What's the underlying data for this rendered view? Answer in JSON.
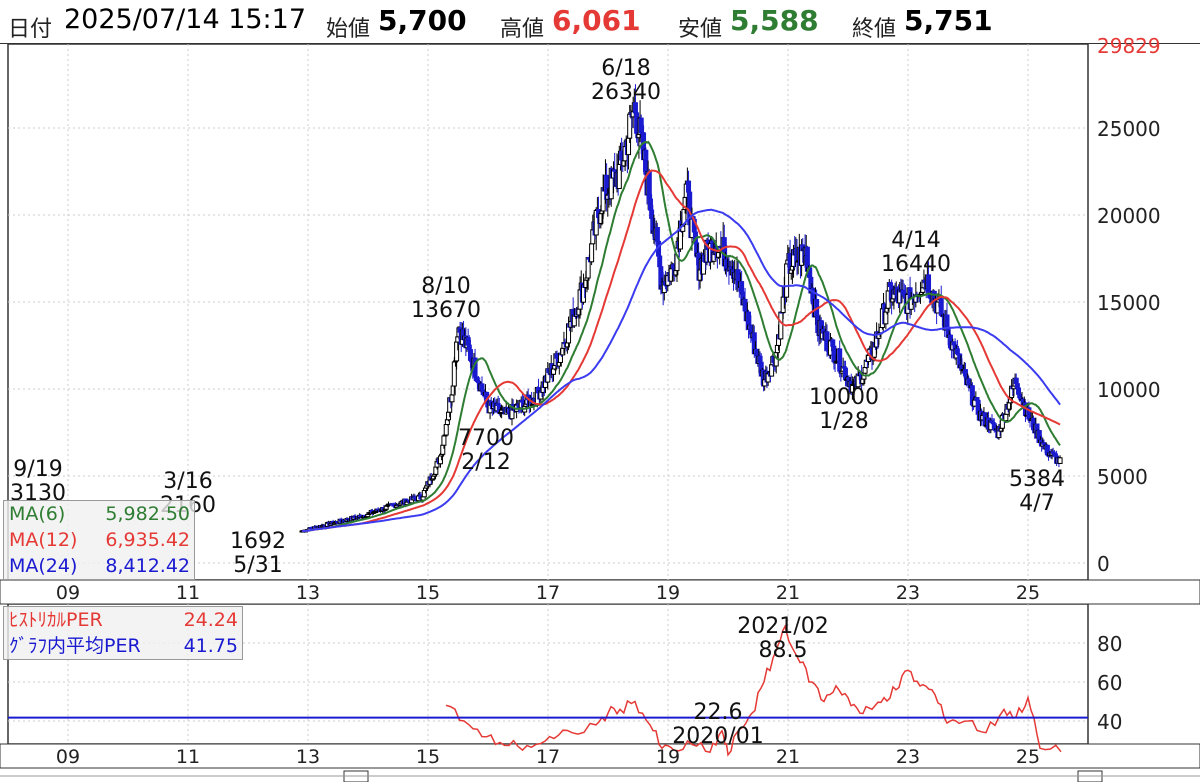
{
  "header": {
    "date_label": "日付",
    "datetime": "2025/07/14 15:17",
    "open_label": "始値",
    "open": "5,700",
    "high_label": "高値",
    "high": "6,061",
    "low_label": "安値",
    "low": "5,588",
    "close_label": "終値",
    "close": "5,751"
  },
  "colors": {
    "up": "#000000",
    "down": "#1a1ad0",
    "ma6": "#2e7d32",
    "ma12": "#e53935",
    "ma24": "#3b3bf0",
    "high_value": "#e53935",
    "low_value": "#2e7d32",
    "per": "#e53935",
    "per_avg": "#1a1ad0"
  },
  "legend_main": [
    {
      "name": "MA(6)",
      "value": "5,982.50",
      "color": "#2e7d32"
    },
    {
      "name": "MA(12)",
      "value": "6,935.42",
      "color": "#e53935"
    },
    {
      "name": "MA(24)",
      "value": "8,412.42",
      "color": "#1a1ad0"
    }
  ],
  "legend_per": [
    {
      "name": "ﾋｽﾄﾘｶﾙPER",
      "value": "24.24",
      "color": "#e53935"
    },
    {
      "name": "ｸﾞﾗﾌ内平均PER",
      "value": "41.75",
      "color": "#1a1ad0"
    }
  ],
  "chart_data": [
    {
      "type": "candlestick",
      "x_tick_labels": [
        "09",
        "11",
        "13",
        "15",
        "17",
        "19",
        "21",
        "23",
        "25"
      ],
      "y_tick_labels": [
        "0",
        "5000",
        "10000",
        "15000",
        "20000",
        "25000"
      ],
      "ylim": [
        0,
        29829
      ],
      "y_top_label": "29829",
      "grid": true,
      "series": [
        {
          "name": "MA(6)",
          "last": 5982.5
        },
        {
          "name": "MA(12)",
          "last": 6935.42
        },
        {
          "name": "MA(24)",
          "last": 8412.42
        }
      ],
      "price_path": [
        [
          2008.3,
          3000
        ],
        [
          2008.7,
          2800
        ],
        [
          2009.0,
          2600
        ],
        [
          2009.5,
          2500
        ],
        [
          2010.0,
          2400
        ],
        [
          2010.6,
          2500
        ],
        [
          2011.2,
          2700
        ],
        [
          2011.8,
          2300
        ],
        [
          2012.4,
          1692
        ],
        [
          2012.8,
          1750
        ],
        [
          2013.3,
          2200
        ],
        [
          2013.9,
          2700
        ],
        [
          2014.4,
          3300
        ],
        [
          2014.9,
          3800
        ],
        [
          2015.2,
          6000
        ],
        [
          2015.4,
          10000
        ],
        [
          2015.5,
          13670
        ],
        [
          2015.7,
          12000
        ],
        [
          2016.0,
          9000
        ],
        [
          2016.3,
          8500
        ],
        [
          2016.8,
          9500
        ],
        [
          2017.2,
          12000
        ],
        [
          2017.6,
          16000
        ],
        [
          2017.9,
          21000
        ],
        [
          2018.2,
          22500
        ],
        [
          2018.45,
          26340
        ],
        [
          2018.7,
          21000
        ],
        [
          2018.9,
          16000
        ],
        [
          2019.1,
          17000
        ],
        [
          2019.3,
          21500
        ],
        [
          2019.5,
          17000
        ],
        [
          2019.8,
          18500
        ],
        [
          2020.1,
          17000
        ],
        [
          2020.4,
          13000
        ],
        [
          2020.6,
          10500
        ],
        [
          2020.8,
          12000
        ],
        [
          2021.0,
          17000
        ],
        [
          2021.3,
          18000
        ],
        [
          2021.5,
          13500
        ],
        [
          2021.8,
          12000
        ],
        [
          2022.1,
          10000
        ],
        [
          2022.4,
          12000
        ],
        [
          2022.7,
          15500
        ],
        [
          2023.0,
          15000
        ],
        [
          2023.3,
          16440
        ],
        [
          2023.6,
          14000
        ],
        [
          2023.9,
          11000
        ],
        [
          2024.2,
          8500
        ],
        [
          2024.5,
          7500
        ],
        [
          2024.8,
          10500
        ],
        [
          2025.0,
          8500
        ],
        [
          2025.3,
          6500
        ],
        [
          2025.55,
          5750
        ]
      ],
      "annotations": [
        {
          "date": "9/19",
          "value": "3130"
        },
        {
          "date": "3/16",
          "value": "2160"
        },
        {
          "date": "5/31",
          "value": "1692"
        },
        {
          "date": "8/10",
          "value": "13670"
        },
        {
          "date": "2/12",
          "value": "7700"
        },
        {
          "date": "6/18",
          "value": "26340"
        },
        {
          "date": "1/28",
          "value": "10000"
        },
        {
          "date": "4/14",
          "value": "16440"
        },
        {
          "date": "4/7",
          "value": "5384"
        }
      ]
    },
    {
      "type": "line",
      "x_tick_labels": [
        "09",
        "11",
        "13",
        "15",
        "17",
        "19",
        "21",
        "23",
        "25"
      ],
      "y_tick_labels": [
        "40",
        "60",
        "80"
      ],
      "ylim": [
        20,
        100
      ],
      "average_per": 41.75,
      "series": [
        {
          "name": "ﾋｽﾄﾘｶﾙPER",
          "points": [
            [
              2015.3,
              48
            ],
            [
              2015.6,
              40
            ],
            [
              2015.9,
              32
            ],
            [
              2016.2,
              29
            ],
            [
              2016.5,
              27
            ],
            [
              2016.8,
              28
            ],
            [
              2017.1,
              31
            ],
            [
              2017.4,
              34
            ],
            [
              2017.8,
              38
            ],
            [
              2018.0,
              44
            ],
            [
              2018.2,
              46
            ],
            [
              2018.45,
              50
            ],
            [
              2018.7,
              38
            ],
            [
              2018.9,
              26
            ],
            [
              2019.1,
              25
            ],
            [
              2019.4,
              28
            ],
            [
              2019.7,
              24
            ],
            [
              2019.9,
              35
            ],
            [
              2020.0,
              22.6
            ],
            [
              2020.2,
              36
            ],
            [
              2020.4,
              44
            ],
            [
              2020.6,
              60
            ],
            [
              2020.8,
              76
            ],
            [
              2020.95,
              88.5
            ],
            [
              2021.2,
              70
            ],
            [
              2021.4,
              60
            ],
            [
              2021.6,
              50
            ],
            [
              2021.8,
              58
            ],
            [
              2022.0,
              52
            ],
            [
              2022.2,
              44
            ],
            [
              2022.4,
              46
            ],
            [
              2022.6,
              52
            ],
            [
              2022.8,
              56
            ],
            [
              2023.0,
              66
            ],
            [
              2023.2,
              58
            ],
            [
              2023.4,
              56
            ],
            [
              2023.6,
              42
            ],
            [
              2023.8,
              40
            ],
            [
              2024.0,
              40
            ],
            [
              2024.3,
              34
            ],
            [
              2024.6,
              46
            ],
            [
              2024.8,
              42
            ],
            [
              2025.0,
              52
            ],
            [
              2025.2,
              26
            ],
            [
              2025.55,
              24.24
            ]
          ]
        },
        {
          "name": "ｸﾞﾗﾌ内平均PER",
          "value": 41.75
        }
      ],
      "annotations": [
        {
          "date": "2021/02",
          "value": "88.5"
        },
        {
          "date": "2020/01",
          "value": "22.6"
        }
      ]
    }
  ]
}
